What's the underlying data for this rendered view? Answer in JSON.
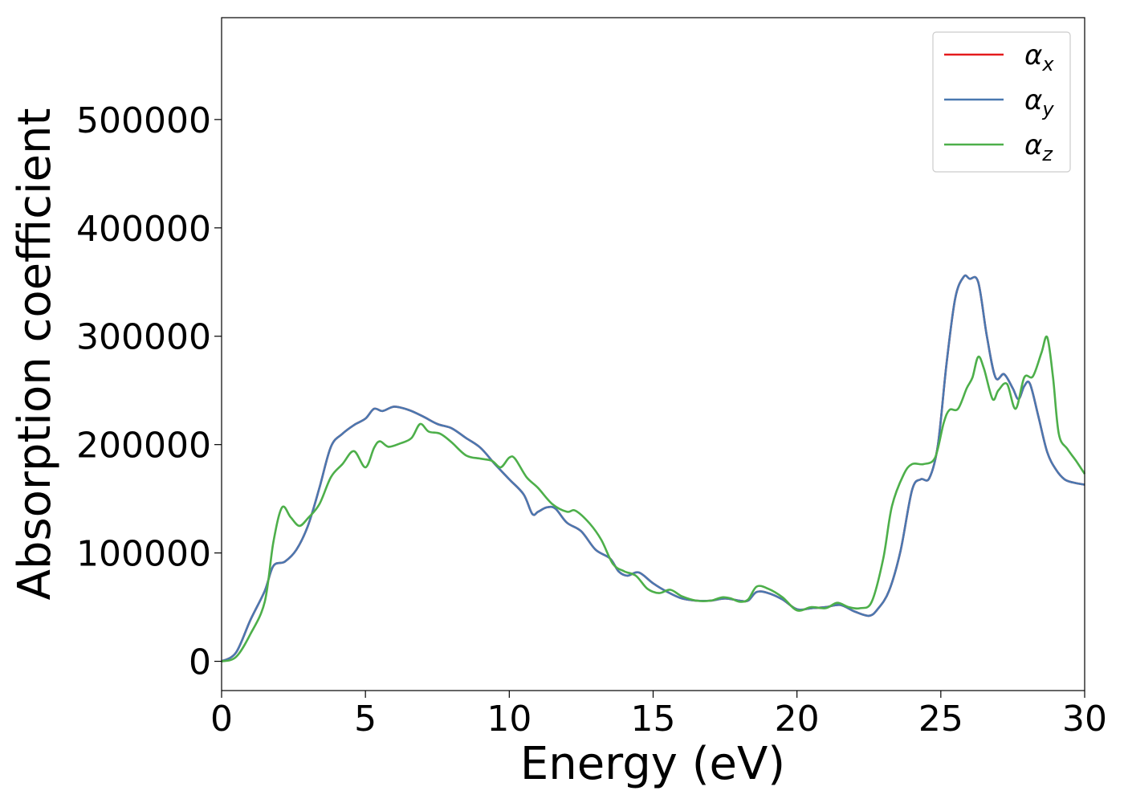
{
  "chart_data": {
    "type": "line",
    "xlabel": "Energy (eV)",
    "ylabel": "Absorption coefficient",
    "xlim": [
      0,
      30
    ],
    "ylim": [
      -27000,
      594000
    ],
    "xticks": [
      0,
      5,
      10,
      15,
      20,
      25,
      30
    ],
    "xtick_labels": [
      "0",
      "5",
      "10",
      "15",
      "20",
      "25",
      "30"
    ],
    "yticks": [
      0,
      100000,
      200000,
      300000,
      400000,
      500000
    ],
    "ytick_labels": [
      "0",
      "100000",
      "200000",
      "300000",
      "400000",
      "500000"
    ],
    "grid": false,
    "legend_position": "top-right",
    "series": [
      {
        "name": "α",
        "subscript": "x",
        "color": "#e41a1c",
        "points": [
          [
            0,
            0
          ],
          [
            0.5,
            8000
          ],
          [
            1,
            38000
          ],
          [
            1.5,
            65000
          ],
          [
            1.8,
            88000
          ],
          [
            2.2,
            92000
          ],
          [
            2.6,
            103000
          ],
          [
            3,
            125000
          ],
          [
            3.4,
            160000
          ],
          [
            3.8,
            198000
          ],
          [
            4.2,
            210000
          ],
          [
            4.6,
            218000
          ],
          [
            5,
            224000
          ],
          [
            5.3,
            233000
          ],
          [
            5.6,
            231000
          ],
          [
            6,
            235000
          ],
          [
            6.5,
            232000
          ],
          [
            7,
            226000
          ],
          [
            7.5,
            219000
          ],
          [
            8,
            215000
          ],
          [
            8.5,
            206000
          ],
          [
            9,
            197000
          ],
          [
            9.5,
            182000
          ],
          [
            10,
            168000
          ],
          [
            10.5,
            154000
          ],
          [
            10.8,
            136000
          ],
          [
            11,
            138000
          ],
          [
            11.3,
            142000
          ],
          [
            11.6,
            141000
          ],
          [
            12,
            128000
          ],
          [
            12.5,
            120000
          ],
          [
            13,
            103000
          ],
          [
            13.5,
            95000
          ],
          [
            13.8,
            83000
          ],
          [
            14.1,
            79000
          ],
          [
            14.5,
            82000
          ],
          [
            15,
            72000
          ],
          [
            15.5,
            64000
          ],
          [
            16,
            58000
          ],
          [
            16.5,
            56000
          ],
          [
            17,
            56000
          ],
          [
            17.5,
            58000
          ],
          [
            18,
            56000
          ],
          [
            18.3,
            56000
          ],
          [
            18.6,
            64000
          ],
          [
            19,
            63000
          ],
          [
            19.5,
            57000
          ],
          [
            20,
            48000
          ],
          [
            20.5,
            49000
          ],
          [
            21,
            50000
          ],
          [
            21.5,
            52000
          ],
          [
            22,
            46000
          ],
          [
            22.5,
            42000
          ],
          [
            22.8,
            48000
          ],
          [
            23.2,
            65000
          ],
          [
            23.6,
            102000
          ],
          [
            24,
            158000
          ],
          [
            24.3,
            168000
          ],
          [
            24.6,
            169000
          ],
          [
            24.9,
            200000
          ],
          [
            25.2,
            275000
          ],
          [
            25.5,
            335000
          ],
          [
            25.8,
            355000
          ],
          [
            26,
            353000
          ],
          [
            26.3,
            350000
          ],
          [
            26.6,
            300000
          ],
          [
            26.9,
            262000
          ],
          [
            27.2,
            265000
          ],
          [
            27.5,
            252000
          ],
          [
            27.7,
            242000
          ],
          [
            27.9,
            254000
          ],
          [
            28.1,
            256000
          ],
          [
            28.4,
            225000
          ],
          [
            28.7,
            193000
          ],
          [
            29,
            177000
          ],
          [
            29.3,
            168000
          ],
          [
            29.6,
            165000
          ],
          [
            30,
            163000
          ]
        ]
      },
      {
        "name": "α",
        "subscript": "y",
        "color": "#4a78b0",
        "points": [
          [
            0,
            0
          ],
          [
            0.5,
            8000
          ],
          [
            1,
            38000
          ],
          [
            1.5,
            65000
          ],
          [
            1.8,
            88000
          ],
          [
            2.2,
            92000
          ],
          [
            2.6,
            103000
          ],
          [
            3,
            125000
          ],
          [
            3.4,
            160000
          ],
          [
            3.8,
            198000
          ],
          [
            4.2,
            210000
          ],
          [
            4.6,
            218000
          ],
          [
            5,
            224000
          ],
          [
            5.3,
            233000
          ],
          [
            5.6,
            231000
          ],
          [
            6,
            235000
          ],
          [
            6.5,
            232000
          ],
          [
            7,
            226000
          ],
          [
            7.5,
            219000
          ],
          [
            8,
            215000
          ],
          [
            8.5,
            206000
          ],
          [
            9,
            197000
          ],
          [
            9.5,
            182000
          ],
          [
            10,
            168000
          ],
          [
            10.5,
            154000
          ],
          [
            10.8,
            136000
          ],
          [
            11,
            138000
          ],
          [
            11.3,
            142000
          ],
          [
            11.6,
            141000
          ],
          [
            12,
            128000
          ],
          [
            12.5,
            120000
          ],
          [
            13,
            103000
          ],
          [
            13.5,
            95000
          ],
          [
            13.8,
            83000
          ],
          [
            14.1,
            79000
          ],
          [
            14.5,
            82000
          ],
          [
            15,
            72000
          ],
          [
            15.5,
            64000
          ],
          [
            16,
            58000
          ],
          [
            16.5,
            56000
          ],
          [
            17,
            56000
          ],
          [
            17.5,
            58000
          ],
          [
            18,
            56000
          ],
          [
            18.3,
            56000
          ],
          [
            18.6,
            64000
          ],
          [
            19,
            63000
          ],
          [
            19.5,
            57000
          ],
          [
            20,
            48000
          ],
          [
            20.5,
            49000
          ],
          [
            21,
            50000
          ],
          [
            21.5,
            52000
          ],
          [
            22,
            46000
          ],
          [
            22.5,
            42000
          ],
          [
            22.8,
            48000
          ],
          [
            23.2,
            65000
          ],
          [
            23.6,
            102000
          ],
          [
            24,
            158000
          ],
          [
            24.3,
            168000
          ],
          [
            24.6,
            169000
          ],
          [
            24.9,
            200000
          ],
          [
            25.2,
            275000
          ],
          [
            25.5,
            335000
          ],
          [
            25.8,
            355000
          ],
          [
            26,
            353000
          ],
          [
            26.3,
            350000
          ],
          [
            26.6,
            300000
          ],
          [
            26.9,
            262000
          ],
          [
            27.2,
            265000
          ],
          [
            27.5,
            252000
          ],
          [
            27.7,
            242000
          ],
          [
            27.9,
            254000
          ],
          [
            28.1,
            256000
          ],
          [
            28.4,
            225000
          ],
          [
            28.7,
            193000
          ],
          [
            29,
            177000
          ],
          [
            29.3,
            168000
          ],
          [
            29.6,
            165000
          ],
          [
            30,
            163000
          ]
        ]
      },
      {
        "name": "α",
        "subscript": "z",
        "color": "#4daf4a",
        "points": [
          [
            0,
            0
          ],
          [
            0.5,
            4000
          ],
          [
            1,
            25000
          ],
          [
            1.5,
            55000
          ],
          [
            1.8,
            110000
          ],
          [
            2.1,
            142000
          ],
          [
            2.4,
            133000
          ],
          [
            2.7,
            125000
          ],
          [
            3,
            132000
          ],
          [
            3.4,
            145000
          ],
          [
            3.8,
            170000
          ],
          [
            4.2,
            182000
          ],
          [
            4.6,
            194000
          ],
          [
            5,
            179000
          ],
          [
            5.3,
            197000
          ],
          [
            5.5,
            203000
          ],
          [
            5.8,
            198000
          ],
          [
            6.2,
            201000
          ],
          [
            6.6,
            206000
          ],
          [
            6.9,
            219000
          ],
          [
            7.2,
            212000
          ],
          [
            7.6,
            210000
          ],
          [
            8,
            202000
          ],
          [
            8.5,
            190000
          ],
          [
            9,
            187000
          ],
          [
            9.4,
            185000
          ],
          [
            9.7,
            179000
          ],
          [
            10,
            188000
          ],
          [
            10.2,
            187000
          ],
          [
            10.6,
            170000
          ],
          [
            11,
            160000
          ],
          [
            11.5,
            145000
          ],
          [
            12,
            138000
          ],
          [
            12.3,
            139000
          ],
          [
            12.8,
            127000
          ],
          [
            13.2,
            112000
          ],
          [
            13.6,
            90000
          ],
          [
            14,
            83000
          ],
          [
            14.4,
            79000
          ],
          [
            14.8,
            67000
          ],
          [
            15.2,
            63000
          ],
          [
            15.6,
            66000
          ],
          [
            16,
            60000
          ],
          [
            16.5,
            56000
          ],
          [
            17,
            56000
          ],
          [
            17.4,
            59000
          ],
          [
            17.7,
            58000
          ],
          [
            18,
            55000
          ],
          [
            18.3,
            57000
          ],
          [
            18.6,
            69000
          ],
          [
            19,
            67000
          ],
          [
            19.5,
            59000
          ],
          [
            20,
            47000
          ],
          [
            20.5,
            50000
          ],
          [
            21,
            49000
          ],
          [
            21.4,
            54000
          ],
          [
            21.8,
            50000
          ],
          [
            22.2,
            49000
          ],
          [
            22.6,
            55000
          ],
          [
            23,
            95000
          ],
          [
            23.3,
            143000
          ],
          [
            23.7,
            172000
          ],
          [
            24,
            182000
          ],
          [
            24.4,
            182000
          ],
          [
            24.8,
            188000
          ],
          [
            25.1,
            220000
          ],
          [
            25.3,
            232000
          ],
          [
            25.6,
            233000
          ],
          [
            25.9,
            252000
          ],
          [
            26.1,
            262000
          ],
          [
            26.3,
            281000
          ],
          [
            26.5,
            270000
          ],
          [
            26.8,
            242000
          ],
          [
            27,
            250000
          ],
          [
            27.3,
            256000
          ],
          [
            27.6,
            233000
          ],
          [
            27.9,
            262000
          ],
          [
            28.2,
            263000
          ],
          [
            28.5,
            285000
          ],
          [
            28.7,
            299000
          ],
          [
            28.9,
            262000
          ],
          [
            29.1,
            210000
          ],
          [
            29.4,
            196000
          ],
          [
            29.7,
            185000
          ],
          [
            30,
            173000
          ]
        ]
      }
    ]
  }
}
